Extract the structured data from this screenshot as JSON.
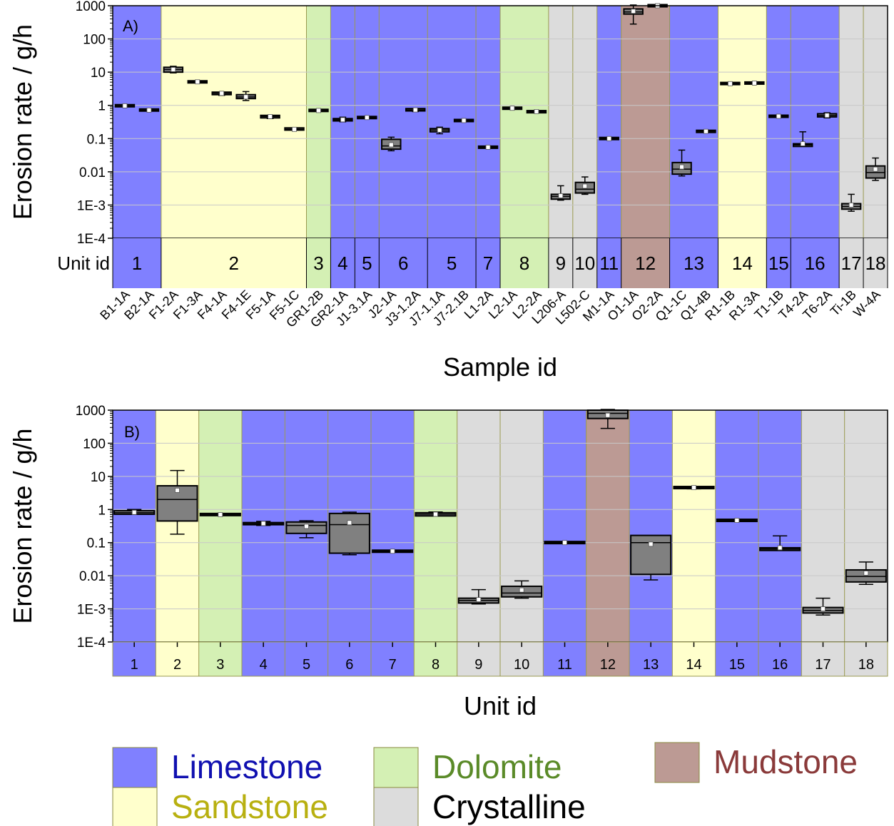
{
  "rock_colors": {
    "Limestone": "#8080ff",
    "Sandstone": "#ffffcc",
    "Dolomite": "#d4f0b4",
    "Crystalline": "#dcdcdc",
    "Mudstone": "#bc9a94"
  },
  "legend": [
    {
      "label": "Limestone",
      "rock": "Limestone",
      "text_color": "#1010b0"
    },
    {
      "label": "Dolomite",
      "rock": "Dolomite",
      "text_color": "#5a8a28"
    },
    {
      "label": "Mudstone",
      "rock": "Mudstone",
      "text_color": "#8a3a3a"
    },
    {
      "label": "Sandstone",
      "rock": "Sandstone",
      "text_color": "#b8b010"
    },
    {
      "label": "Crystalline",
      "rock": "Crystalline",
      "text_color": "#000000"
    }
  ],
  "chart_data": [
    {
      "type": "box",
      "panel_label": "A)",
      "ylabel": "Erosion rate / g/h",
      "xlabel": "Sample id",
      "yscale": "log",
      "ylim": [
        0.0001,
        1000
      ],
      "yticks": [
        "1E-4",
        "1E-3",
        "0.01",
        "0.1",
        "1",
        "10",
        "100",
        "1000"
      ],
      "row_label": "Unit id",
      "units": [
        {
          "label": "1",
          "rock": "Limestone"
        },
        {
          "label": "2",
          "rock": "Sandstone"
        },
        {
          "label": "3",
          "rock": "Dolomite"
        },
        {
          "label": "4",
          "rock": "Limestone"
        },
        {
          "label": "5",
          "rock": "Limestone"
        },
        {
          "label": "6",
          "rock": "Limestone"
        },
        {
          "label": "5",
          "rock": "Limestone"
        },
        {
          "label": "7",
          "rock": "Limestone"
        },
        {
          "label": "8",
          "rock": "Dolomite"
        },
        {
          "label": "9",
          "rock": "Crystalline"
        },
        {
          "label": "10",
          "rock": "Crystalline"
        },
        {
          "label": "11",
          "rock": "Limestone"
        },
        {
          "label": "12",
          "rock": "Mudstone"
        },
        {
          "label": "13",
          "rock": "Limestone"
        },
        {
          "label": "14",
          "rock": "Sandstone"
        },
        {
          "label": "15",
          "rock": "Limestone"
        },
        {
          "label": "16",
          "rock": "Limestone"
        },
        {
          "label": "17",
          "rock": "Crystalline"
        },
        {
          "label": "18",
          "rock": "Crystalline"
        }
      ],
      "unit_spans": [
        2,
        6,
        1,
        1,
        1,
        2,
        2,
        1,
        2,
        1,
        1,
        1,
        2,
        2,
        2,
        1,
        2,
        1,
        1
      ],
      "samples": [
        {
          "id": "B1-1A",
          "min": 0.95,
          "q1": 0.95,
          "median": 0.97,
          "q3": 1.0,
          "max": 1.0,
          "mean": 0.97
        },
        {
          "id": "B2-1A",
          "min": 0.7,
          "q1": 0.7,
          "median": 0.72,
          "q3": 0.75,
          "max": 0.75,
          "mean": 0.72
        },
        {
          "id": "F1-2A",
          "min": 9.5,
          "q1": 10,
          "median": 12,
          "q3": 14,
          "max": 15,
          "mean": 12
        },
        {
          "id": "F1-3A",
          "min": 4.9,
          "q1": 5.0,
          "median": 5.1,
          "q3": 5.2,
          "max": 5.3,
          "mean": 5.1
        },
        {
          "id": "F4-1A",
          "min": 2.0,
          "q1": 2.1,
          "median": 2.3,
          "q3": 2.5,
          "max": 2.6,
          "mean": 2.3
        },
        {
          "id": "F4-1E",
          "min": 1.4,
          "q1": 1.6,
          "median": 1.8,
          "q3": 2.1,
          "max": 2.6,
          "mean": 1.8
        },
        {
          "id": "F5-1A",
          "min": 0.4,
          "q1": 0.42,
          "median": 0.46,
          "q3": 0.5,
          "max": 0.52,
          "mean": 0.46
        },
        {
          "id": "F5-1C",
          "min": 0.18,
          "q1": 0.18,
          "median": 0.19,
          "q3": 0.21,
          "max": 0.21,
          "mean": 0.19
        },
        {
          "id": "GR1-2B",
          "min": 0.68,
          "q1": 0.69,
          "median": 0.7,
          "q3": 0.72,
          "max": 0.73,
          "mean": 0.7
        },
        {
          "id": "GR2-1A",
          "min": 0.32,
          "q1": 0.34,
          "median": 0.37,
          "q3": 0.4,
          "max": 0.44,
          "mean": 0.37
        },
        {
          "id": "J1-3.1A",
          "min": 0.41,
          "q1": 0.42,
          "median": 0.43,
          "q3": 0.44,
          "max": 0.45,
          "mean": 0.43
        },
        {
          "id": "J2-1A",
          "min": 0.043,
          "q1": 0.048,
          "median": 0.06,
          "q3": 0.095,
          "max": 0.11,
          "mean": 0.065
        },
        {
          "id": "J3-1.2A",
          "min": 0.65,
          "q1": 0.68,
          "median": 0.73,
          "q3": 0.8,
          "max": 0.83,
          "mean": 0.73
        },
        {
          "id": "J7-1.1A",
          "min": 0.14,
          "q1": 0.16,
          "median": 0.18,
          "q3": 0.2,
          "max": 0.22,
          "mean": 0.18
        },
        {
          "id": "J7-2.1B",
          "min": 0.34,
          "q1": 0.34,
          "median": 0.35,
          "q3": 0.36,
          "max": 0.36,
          "mean": 0.35
        },
        {
          "id": "L1-2A",
          "min": 0.052,
          "q1": 0.053,
          "median": 0.055,
          "q3": 0.057,
          "max": 0.058,
          "mean": 0.055
        },
        {
          "id": "L2-1A",
          "min": 0.8,
          "q1": 0.8,
          "median": 0.82,
          "q3": 0.84,
          "max": 0.84,
          "mean": 0.82
        },
        {
          "id": "L2-2A",
          "min": 0.63,
          "q1": 0.63,
          "median": 0.65,
          "q3": 0.66,
          "max": 0.66,
          "mean": 0.65
        },
        {
          "id": "L206-A",
          "min": 0.0014,
          "q1": 0.0015,
          "median": 0.0018,
          "q3": 0.0021,
          "max": 0.0038,
          "mean": 0.0019
        },
        {
          "id": "L502-C",
          "min": 0.0021,
          "q1": 0.0023,
          "median": 0.003,
          "q3": 0.0048,
          "max": 0.007,
          "mean": 0.0037
        },
        {
          "id": "M1-1A",
          "min": 0.095,
          "q1": 0.096,
          "median": 0.1,
          "q3": 0.105,
          "max": 0.106,
          "mean": 0.1
        },
        {
          "id": "O1-1A",
          "min": 280,
          "q1": 560,
          "median": 650,
          "q3": 800,
          "max": 1050,
          "mean": 680
        },
        {
          "id": "O2-2A",
          "min": 950,
          "q1": 960,
          "median": 1000,
          "q3": 1040,
          "max": 1050,
          "mean": 1000
        },
        {
          "id": "Q1-1C",
          "min": 0.0075,
          "q1": 0.0085,
          "median": 0.012,
          "q3": 0.019,
          "max": 0.045,
          "mean": 0.014
        },
        {
          "id": "Q1-4B",
          "min": 0.16,
          "q1": 0.16,
          "median": 0.165,
          "q3": 0.17,
          "max": 0.17,
          "mean": 0.165
        },
        {
          "id": "R1-1B",
          "min": 4.2,
          "q1": 4.3,
          "median": 4.5,
          "q3": 4.8,
          "max": 4.9,
          "mean": 4.5
        },
        {
          "id": "R1-3A",
          "min": 4.5,
          "q1": 4.6,
          "median": 4.7,
          "q3": 4.8,
          "max": 4.9,
          "mean": 4.7
        },
        {
          "id": "T1-1B",
          "min": 0.44,
          "q1": 0.45,
          "median": 0.47,
          "q3": 0.49,
          "max": 0.5,
          "mean": 0.47
        },
        {
          "id": "T4-2A",
          "min": 0.056,
          "q1": 0.058,
          "median": 0.064,
          "q3": 0.07,
          "max": 0.16,
          "mean": 0.07
        },
        {
          "id": "T6-2A",
          "min": 0.42,
          "q1": 0.45,
          "median": 0.5,
          "q3": 0.56,
          "max": 0.6,
          "mean": 0.5
        },
        {
          "id": "Ti-1B",
          "min": 0.00065,
          "q1": 0.00075,
          "median": 0.0009,
          "q3": 0.0011,
          "max": 0.0021,
          "mean": 0.001
        },
        {
          "id": "W-4A",
          "min": 0.0055,
          "q1": 0.0065,
          "median": 0.0095,
          "q3": 0.015,
          "max": 0.026,
          "mean": 0.012
        }
      ]
    },
    {
      "type": "box",
      "panel_label": "B)",
      "ylabel": "Erosion rate / g/h",
      "xlabel": "Unit id",
      "yscale": "log",
      "ylim": [
        0.0001,
        1000
      ],
      "yticks": [
        "1E-4",
        "1E-3",
        "0.01",
        "0.1",
        "1",
        "10",
        "100",
        "1000"
      ],
      "units": [
        {
          "label": "1",
          "rock": "Limestone",
          "min": 0.7,
          "q1": 0.72,
          "median": 0.8,
          "q3": 0.92,
          "max": 1.0,
          "mean": 0.82
        },
        {
          "label": "2",
          "rock": "Sandstone",
          "min": 0.18,
          "q1": 0.45,
          "median": 2.0,
          "q3": 5.2,
          "max": 15,
          "mean": 3.8
        },
        {
          "label": "3",
          "rock": "Dolomite",
          "min": 0.68,
          "q1": 0.69,
          "median": 0.7,
          "q3": 0.72,
          "max": 0.73,
          "mean": 0.7
        },
        {
          "label": "4",
          "rock": "Limestone",
          "min": 0.33,
          "q1": 0.35,
          "median": 0.37,
          "q3": 0.4,
          "max": 0.44,
          "mean": 0.38
        },
        {
          "label": "5",
          "rock": "Limestone",
          "min": 0.14,
          "q1": 0.19,
          "median": 0.33,
          "q3": 0.42,
          "max": 0.46,
          "mean": 0.31
        },
        {
          "label": "6",
          "rock": "Limestone",
          "min": 0.043,
          "q1": 0.048,
          "median": 0.35,
          "q3": 0.76,
          "max": 0.83,
          "mean": 0.4
        },
        {
          "label": "7",
          "rock": "Limestone",
          "min": 0.052,
          "q1": 0.053,
          "median": 0.055,
          "q3": 0.057,
          "max": 0.058,
          "mean": 0.055
        },
        {
          "label": "8",
          "rock": "Dolomite",
          "min": 0.62,
          "q1": 0.64,
          "median": 0.72,
          "q3": 0.8,
          "max": 0.84,
          "mean": 0.72
        },
        {
          "label": "9",
          "rock": "Crystalline",
          "min": 0.0014,
          "q1": 0.0015,
          "median": 0.0018,
          "q3": 0.0021,
          "max": 0.0038,
          "mean": 0.0019
        },
        {
          "label": "10",
          "rock": "Crystalline",
          "min": 0.0021,
          "q1": 0.0023,
          "median": 0.003,
          "q3": 0.0048,
          "max": 0.007,
          "mean": 0.0037
        },
        {
          "label": "11",
          "rock": "Limestone",
          "min": 0.095,
          "q1": 0.096,
          "median": 0.1,
          "q3": 0.105,
          "max": 0.106,
          "mean": 0.1
        },
        {
          "label": "12",
          "rock": "Mudstone",
          "min": 280,
          "q1": 560,
          "median": 800,
          "q3": 1000,
          "max": 1050,
          "mean": 700
        },
        {
          "label": "13",
          "rock": "Limestone",
          "min": 0.0075,
          "q1": 0.011,
          "median": 0.1,
          "q3": 0.165,
          "max": 0.17,
          "mean": 0.09
        },
        {
          "label": "14",
          "rock": "Sandstone",
          "min": 4.2,
          "q1": 4.4,
          "median": 4.6,
          "q3": 4.8,
          "max": 4.9,
          "mean": 4.6
        },
        {
          "label": "15",
          "rock": "Limestone",
          "min": 0.44,
          "q1": 0.45,
          "median": 0.47,
          "q3": 0.49,
          "max": 0.5,
          "mean": 0.47
        },
        {
          "label": "16",
          "rock": "Limestone",
          "min": 0.056,
          "q1": 0.058,
          "median": 0.064,
          "q3": 0.07,
          "max": 0.16,
          "mean": 0.07
        },
        {
          "label": "17",
          "rock": "Crystalline",
          "min": 0.00065,
          "q1": 0.00075,
          "median": 0.0009,
          "q3": 0.0011,
          "max": 0.0021,
          "mean": 0.001
        },
        {
          "label": "18",
          "rock": "Crystalline",
          "min": 0.0055,
          "q1": 0.0065,
          "median": 0.0095,
          "q3": 0.015,
          "max": 0.026,
          "mean": 0.012
        }
      ]
    }
  ]
}
